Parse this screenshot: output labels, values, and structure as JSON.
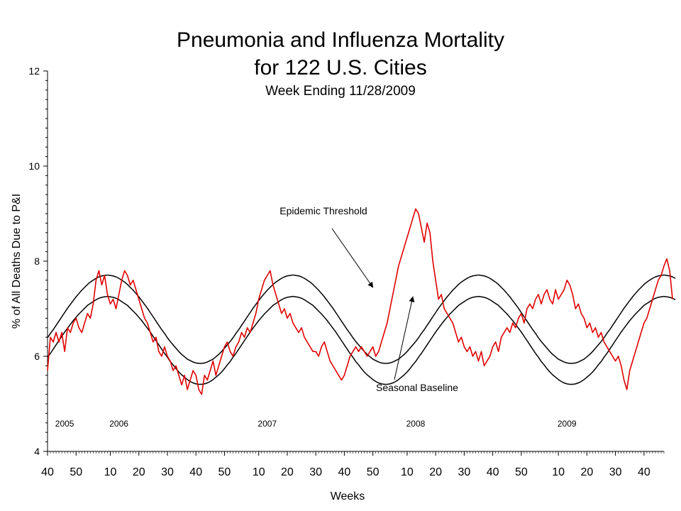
{
  "chart_data": {
    "type": "line",
    "title": [
      "Pneumonia and Influenza Mortality",
      "for 122 U.S. Cities"
    ],
    "subtitle": "Week Ending 11/28/2009",
    "xlabel": "Weeks",
    "ylabel": "% of All Deaths Due to P&I",
    "ylim": [
      4,
      12
    ],
    "yticks": [
      "4",
      "6",
      "8",
      "10",
      "12"
    ],
    "xlim": [
      0,
      216
    ],
    "x_tick_labels": [
      {
        "x": 0,
        "label": "40"
      },
      {
        "x": 10,
        "label": "50"
      },
      {
        "x": 22,
        "label": "10"
      },
      {
        "x": 32,
        "label": "20"
      },
      {
        "x": 42,
        "label": "30"
      },
      {
        "x": 52,
        "label": "40"
      },
      {
        "x": 62,
        "label": "50"
      },
      {
        "x": 74,
        "label": "10"
      },
      {
        "x": 84,
        "label": "20"
      },
      {
        "x": 94,
        "label": "30"
      },
      {
        "x": 104,
        "label": "40"
      },
      {
        "x": 114,
        "label": "50"
      },
      {
        "x": 126,
        "label": "10"
      },
      {
        "x": 136,
        "label": "20"
      },
      {
        "x": 146,
        "label": "30"
      },
      {
        "x": 156,
        "label": "40"
      },
      {
        "x": 166,
        "label": "50"
      },
      {
        "x": 179,
        "label": "10"
      },
      {
        "x": 189,
        "label": "20"
      },
      {
        "x": 199,
        "label": "30"
      },
      {
        "x": 209,
        "label": "40"
      }
    ],
    "year_labels": [
      {
        "x": 6,
        "label": "2005"
      },
      {
        "x": 25,
        "label": "2006"
      },
      {
        "x": 77,
        "label": "2007"
      },
      {
        "x": 129,
        "label": "2008"
      },
      {
        "x": 182,
        "label": "2009"
      }
    ],
    "annotations": [
      {
        "text": "Epidemic Threshold",
        "points_to": {
          "x": 114,
          "y": 7.45
        }
      },
      {
        "text": "Seasonal Baseline",
        "points_to": {
          "x": 128,
          "y": 7.25
        }
      }
    ],
    "series": [
      {
        "role": "observed",
        "color": "#e00000",
        "x_start": 0,
        "x_step": 1,
        "values": [
          5.7,
          6.4,
          6.3,
          6.5,
          6.3,
          6.5,
          6.1,
          6.6,
          6.5,
          6.7,
          6.8,
          6.6,
          6.5,
          6.7,
          6.9,
          6.8,
          7.1,
          7.6,
          7.8,
          7.5,
          7.7,
          7.3,
          7.1,
          7.2,
          7.0,
          7.3,
          7.6,
          7.8,
          7.7,
          7.5,
          7.6,
          7.4,
          7.2,
          7.0,
          6.8,
          6.7,
          6.5,
          6.3,
          6.4,
          6.1,
          6.0,
          6.2,
          6.0,
          5.9,
          5.7,
          5.8,
          5.6,
          5.4,
          5.6,
          5.3,
          5.5,
          5.7,
          5.6,
          5.3,
          5.2,
          5.6,
          5.5,
          5.7,
          5.9,
          5.6,
          5.8,
          6.0,
          6.2,
          6.3,
          6.1,
          6.0,
          6.2,
          6.3,
          6.5,
          6.4,
          6.6,
          6.5,
          6.7,
          6.9,
          7.2,
          7.4,
          7.6,
          7.7,
          7.8,
          7.5,
          7.3,
          7.1,
          6.9,
          7.0,
          6.8,
          6.9,
          6.7,
          6.6,
          6.5,
          6.6,
          6.4,
          6.3,
          6.2,
          6.1,
          6.1,
          6.0,
          6.2,
          6.3,
          6.1,
          5.9,
          5.8,
          5.7,
          5.6,
          5.5,
          5.6,
          5.8,
          6.0,
          6.1,
          6.2,
          6.1,
          6.2,
          6.1,
          6.0,
          6.1,
          6.2,
          6.0,
          6.1,
          6.3,
          6.5,
          6.7,
          7.0,
          7.3,
          7.6,
          7.9,
          8.1,
          8.3,
          8.5,
          8.7,
          8.9,
          9.1,
          9.0,
          8.7,
          8.4,
          8.8,
          8.6,
          8.0,
          7.6,
          7.2,
          7.3,
          7.0,
          6.9,
          6.8,
          6.7,
          6.5,
          6.3,
          6.4,
          6.2,
          6.1,
          6.2,
          6.0,
          6.1,
          5.9,
          6.1,
          5.8,
          5.9,
          6.0,
          6.2,
          6.3,
          6.1,
          6.4,
          6.5,
          6.6,
          6.5,
          6.7,
          6.6,
          6.8,
          6.9,
          6.7,
          7.0,
          7.1,
          7.0,
          7.2,
          7.3,
          7.1,
          7.3,
          7.4,
          7.2,
          7.1,
          7.4,
          7.2,
          7.3,
          7.4,
          7.6,
          7.5,
          7.3,
          7.0,
          7.1,
          6.9,
          6.8,
          6.6,
          6.7,
          6.5,
          6.6,
          6.4,
          6.5,
          6.3,
          6.2,
          6.1,
          6.0,
          5.9,
          6.0,
          5.8,
          5.5,
          5.3,
          5.7,
          5.9,
          6.1,
          6.3,
          6.5,
          6.7,
          6.8,
          7.0,
          7.2,
          7.4,
          7.6,
          7.7,
          7.9,
          8.05,
          7.8,
          7.2
        ]
      },
      {
        "role": "threshold",
        "color": "#000000",
        "x_start": 0,
        "x_step": 1,
        "values": [
          6.39,
          6.48,
          6.56,
          6.65,
          6.74,
          6.83,
          6.92,
          7.01,
          7.09,
          7.17,
          7.25,
          7.32,
          7.39,
          7.45,
          7.51,
          7.56,
          7.6,
          7.64,
          7.67,
          7.69,
          7.7,
          7.71,
          7.7,
          7.69,
          7.67,
          7.64,
          7.6,
          7.56,
          7.51,
          7.45,
          7.39,
          7.32,
          7.25,
          7.17,
          7.09,
          7.01,
          6.92,
          6.83,
          6.74,
          6.65,
          6.56,
          6.48,
          6.39,
          6.31,
          6.24,
          6.17,
          6.1,
          6.04,
          5.99,
          5.94,
          5.91,
          5.88,
          5.86,
          5.85,
          5.85,
          5.86,
          5.88,
          5.91,
          5.94,
          5.99,
          6.04,
          6.1,
          6.17,
          6.24,
          6.31,
          6.39,
          6.48,
          6.56,
          6.65,
          6.74,
          6.83,
          6.92,
          7.01,
          7.09,
          7.17,
          7.25,
          7.32,
          7.39,
          7.45,
          7.51,
          7.56,
          7.6,
          7.64,
          7.67,
          7.69,
          7.7,
          7.71,
          7.7,
          7.69,
          7.67,
          7.64,
          7.6,
          7.56,
          7.51,
          7.45,
          7.39,
          7.32,
          7.25,
          7.17,
          7.09,
          7.01,
          6.92,
          6.83,
          6.74,
          6.65,
          6.56,
          6.48,
          6.39,
          6.31,
          6.24,
          6.17,
          6.1,
          6.04,
          5.99,
          5.94,
          5.91,
          5.88,
          5.86,
          5.85,
          5.85,
          5.86,
          5.88,
          5.91,
          5.94,
          5.99,
          6.04,
          6.1,
          6.17,
          6.24,
          6.31,
          6.39,
          6.48,
          6.56,
          6.65,
          6.74,
          6.83,
          6.92,
          7.01,
          7.09,
          7.17,
          7.25,
          7.32,
          7.39,
          7.45,
          7.51,
          7.56,
          7.6,
          7.64,
          7.67,
          7.69,
          7.7,
          7.71,
          7.7,
          7.69,
          7.67,
          7.64,
          7.6,
          7.56,
          7.51,
          7.45,
          7.39,
          7.32,
          7.25,
          7.17,
          7.09,
          7.01,
          6.92,
          6.83,
          6.74,
          6.65,
          6.56,
          6.48,
          6.39,
          6.31,
          6.24,
          6.17,
          6.1,
          6.04,
          5.99,
          5.94,
          5.91,
          5.88,
          5.86,
          5.85,
          5.85,
          5.86,
          5.88,
          5.91,
          5.94,
          5.99,
          6.04,
          6.1,
          6.17,
          6.24,
          6.31,
          6.39,
          6.48,
          6.56,
          6.65,
          6.74,
          6.83,
          6.92,
          7.01,
          7.09,
          7.17,
          7.25,
          7.32,
          7.39,
          7.45,
          7.51,
          7.56,
          7.6,
          7.64,
          7.67,
          7.69,
          7.7,
          7.71,
          7.7,
          7.69,
          7.67,
          7.64
        ]
      },
      {
        "role": "baseline",
        "color": "#000000",
        "x_start": 0,
        "x_step": 1,
        "values": [
          5.98,
          6.06,
          6.15,
          6.24,
          6.33,
          6.42,
          6.51,
          6.59,
          6.67,
          6.75,
          6.82,
          6.89,
          6.95,
          7.01,
          7.07,
          7.11,
          7.15,
          7.19,
          7.22,
          7.24,
          7.25,
          7.26,
          7.25,
          7.24,
          7.22,
          7.19,
          7.15,
          7.11,
          7.07,
          7.01,
          6.95,
          6.89,
          6.82,
          6.75,
          6.67,
          6.59,
          6.51,
          6.42,
          6.33,
          6.24,
          6.15,
          6.06,
          5.98,
          5.89,
          5.82,
          5.74,
          5.67,
          5.61,
          5.56,
          5.51,
          5.47,
          5.44,
          5.42,
          5.41,
          5.41,
          5.42,
          5.44,
          5.47,
          5.51,
          5.56,
          5.61,
          5.67,
          5.74,
          5.82,
          5.89,
          5.98,
          6.06,
          6.15,
          6.24,
          6.33,
          6.42,
          6.51,
          6.59,
          6.67,
          6.75,
          6.82,
          6.89,
          6.95,
          7.01,
          7.07,
          7.11,
          7.15,
          7.19,
          7.22,
          7.24,
          7.25,
          7.26,
          7.25,
          7.24,
          7.22,
          7.19,
          7.15,
          7.11,
          7.07,
          7.01,
          6.95,
          6.89,
          6.82,
          6.75,
          6.67,
          6.59,
          6.51,
          6.42,
          6.33,
          6.24,
          6.15,
          6.06,
          5.98,
          5.89,
          5.82,
          5.74,
          5.67,
          5.61,
          5.56,
          5.51,
          5.47,
          5.44,
          5.42,
          5.41,
          5.41,
          5.42,
          5.44,
          5.47,
          5.51,
          5.56,
          5.61,
          5.67,
          5.74,
          5.82,
          5.89,
          5.98,
          6.06,
          6.15,
          6.24,
          6.33,
          6.42,
          6.51,
          6.59,
          6.67,
          6.75,
          6.82,
          6.89,
          6.95,
          7.01,
          7.07,
          7.11,
          7.15,
          7.19,
          7.22,
          7.24,
          7.25,
          7.26,
          7.25,
          7.24,
          7.22,
          7.19,
          7.15,
          7.11,
          7.07,
          7.01,
          6.95,
          6.89,
          6.82,
          6.75,
          6.67,
          6.59,
          6.51,
          6.42,
          6.33,
          6.24,
          6.15,
          6.06,
          5.98,
          5.89,
          5.82,
          5.74,
          5.67,
          5.61,
          5.56,
          5.51,
          5.47,
          5.44,
          5.42,
          5.41,
          5.41,
          5.42,
          5.44,
          5.47,
          5.51,
          5.56,
          5.61,
          5.67,
          5.74,
          5.82,
          5.89,
          5.98,
          6.06,
          6.15,
          6.24,
          6.33,
          6.42,
          6.51,
          6.59,
          6.67,
          6.75,
          6.82,
          6.89,
          6.95,
          7.01,
          7.07,
          7.11,
          7.15,
          7.19,
          7.22,
          7.24,
          7.25,
          7.26,
          7.25,
          7.24,
          7.22,
          7.19
        ]
      }
    ]
  }
}
